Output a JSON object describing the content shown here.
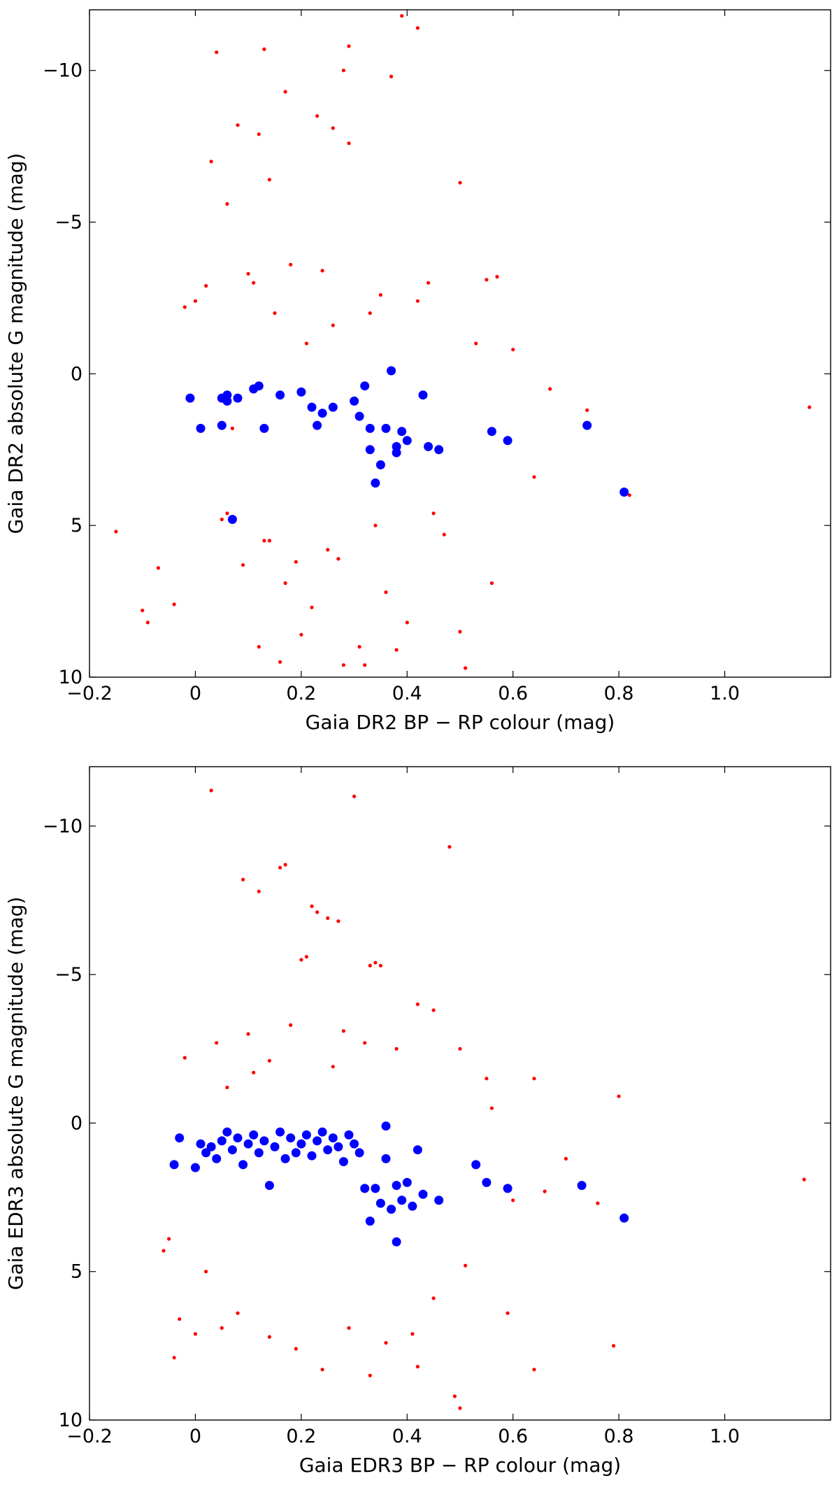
{
  "colors": {
    "field": "#ff0000",
    "highlight": "#0000ff",
    "axis": "#000000",
    "background": "#ffffff"
  },
  "chart_data": [
    {
      "type": "scatter",
      "xlabel": "Gaia DR2 BP − RP colour (mag)",
      "ylabel": "Gaia DR2 absolute G magnitude (mag)",
      "xlim": [
        -0.2,
        1.2
      ],
      "ylim": [
        10,
        -12
      ],
      "y_inverted": true,
      "xticks": [
        -0.2,
        0,
        0.2,
        0.4,
        0.6,
        0.8,
        1.0
      ],
      "xtick_labels": [
        "−0.2",
        "0",
        "0.2",
        "0.4",
        "0.6",
        "0.8",
        "1.0"
      ],
      "yticks": [
        -10,
        -5,
        0,
        5,
        10
      ],
      "ytick_labels": [
        "−10",
        "−5",
        "0",
        "5",
        "10"
      ],
      "grid": false,
      "series": [
        {
          "color": "#ff0000",
          "marker_size": "small",
          "x": [
            0.39,
            0.42,
            0.29,
            0.04,
            0.13,
            0.28,
            0.37,
            0.5,
            0.26,
            0.17,
            0.08,
            0.23,
            0.12,
            0.29,
            0.03,
            0.06,
            0.14,
            0.44,
            0.57,
            0.55,
            0.67,
            0.74,
            1.16,
            0.82,
            0.64,
            0.56,
            0.06,
            -0.07,
            -0.04,
            -0.09,
            -0.1,
            0.51,
            0.5,
            0.32,
            0.28,
            0.16,
            0.12,
            0.31,
            0.2,
            0.38,
            0.4,
            0.05,
            0.14,
            0.47,
            0.45,
            0.07,
            0.21,
            0.26,
            0.33,
            -0.02,
            0.0,
            0.02,
            0.1,
            0.18,
            0.24,
            0.35,
            0.42,
            0.53,
            0.6,
            -0.15,
            0.25,
            0.19,
            0.17,
            0.22,
            0.09,
            0.13,
            0.27,
            0.34,
            0.36,
            0.11,
            0.15
          ],
          "y": [
            -11.8,
            -11.4,
            -10.8,
            -10.6,
            -10.7,
            -10.0,
            -9.8,
            -6.3,
            -8.1,
            -9.3,
            -8.2,
            -8.5,
            -7.9,
            -7.6,
            -7.0,
            -5.6,
            -6.4,
            -3.0,
            -3.2,
            -3.1,
            0.5,
            1.2,
            1.1,
            4.0,
            3.4,
            6.9,
            4.6,
            6.4,
            7.6,
            8.2,
            7.8,
            9.7,
            8.5,
            9.6,
            9.6,
            9.5,
            9.0,
            9.0,
            8.6,
            9.1,
            8.2,
            4.8,
            5.5,
            5.3,
            4.6,
            1.8,
            -1.0,
            -1.6,
            -2.0,
            -2.2,
            -2.4,
            -2.9,
            -3.3,
            -3.6,
            -3.4,
            -2.6,
            -2.4,
            -1.0,
            -0.8,
            5.2,
            5.8,
            6.2,
            6.9,
            7.7,
            6.3,
            5.5,
            6.1,
            5.0,
            7.2,
            -3.0,
            -2.0
          ]
        },
        {
          "color": "#0000ff",
          "marker_size": "large",
          "x": [
            -0.01,
            0.01,
            0.05,
            0.06,
            0.06,
            0.05,
            0.07,
            0.08,
            0.11,
            0.12,
            0.13,
            0.16,
            0.2,
            0.22,
            0.23,
            0.24,
            0.26,
            0.3,
            0.31,
            0.32,
            0.33,
            0.33,
            0.34,
            0.35,
            0.36,
            0.37,
            0.38,
            0.38,
            0.39,
            0.4,
            0.43,
            0.44,
            0.46,
            0.56,
            0.59,
            0.74,
            0.81
          ],
          "y": [
            0.8,
            1.8,
            0.8,
            0.9,
            0.7,
            1.7,
            4.8,
            0.8,
            0.5,
            0.4,
            1.8,
            0.7,
            0.6,
            1.1,
            1.7,
            1.3,
            1.1,
            0.9,
            1.4,
            0.4,
            1.8,
            2.5,
            3.6,
            3.0,
            1.8,
            -0.1,
            2.4,
            2.6,
            1.9,
            2.2,
            0.7,
            2.4,
            2.5,
            1.9,
            2.2,
            1.7,
            3.9
          ]
        }
      ]
    },
    {
      "type": "scatter",
      "xlabel": "Gaia EDR3 BP − RP colour (mag)",
      "ylabel": "Gaia EDR3 absolute G magnitude (mag)",
      "xlim": [
        -0.2,
        1.2
      ],
      "ylim": [
        10,
        -12
      ],
      "y_inverted": true,
      "xticks": [
        -0.2,
        0,
        0.2,
        0.4,
        0.6,
        0.8,
        1.0
      ],
      "xtick_labels": [
        "−0.2",
        "0",
        "0.2",
        "0.4",
        "0.6",
        "0.8",
        "1.0"
      ],
      "yticks": [
        -10,
        -5,
        0,
        5,
        10
      ],
      "ytick_labels": [
        "−10",
        "−5",
        "0",
        "5",
        "10"
      ],
      "grid": false,
      "series": [
        {
          "color": "#ff0000",
          "marker_size": "small",
          "x": [
            0.03,
            0.3,
            0.48,
            0.16,
            0.17,
            0.09,
            0.12,
            0.22,
            0.23,
            0.25,
            0.27,
            0.2,
            0.21,
            0.33,
            0.34,
            0.35,
            0.42,
            0.45,
            0.5,
            0.55,
            0.64,
            0.8,
            1.15,
            0.79,
            0.66,
            0.64,
            0.59,
            0.49,
            0.5,
            0.33,
            0.42,
            0.05,
            -0.05,
            -0.04,
            -0.03,
            -0.06,
            0.0,
            0.02,
            0.08,
            0.14,
            0.19,
            0.24,
            0.29,
            0.36,
            0.41,
            0.45,
            0.51,
            0.6,
            0.7,
            0.76,
            0.56,
            0.26,
            0.14,
            0.11,
            0.06,
            0.38,
            0.32,
            0.28,
            0.18,
            0.1,
            0.04,
            -0.02
          ],
          "y": [
            -11.2,
            -11.0,
            -9.3,
            -8.6,
            -8.7,
            -8.2,
            -7.8,
            -7.3,
            -7.1,
            -6.9,
            -6.8,
            -5.5,
            -5.6,
            -5.3,
            -5.4,
            -5.3,
            -4.0,
            -3.8,
            -2.5,
            -1.5,
            -1.5,
            -0.9,
            1.9,
            7.5,
            2.3,
            8.3,
            6.4,
            9.2,
            9.6,
            8.5,
            8.2,
            6.9,
            3.9,
            7.9,
            6.6,
            4.3,
            7.1,
            5.0,
            6.4,
            7.2,
            7.6,
            8.3,
            6.9,
            7.4,
            7.1,
            5.9,
            4.8,
            2.6,
            1.2,
            2.7,
            -0.5,
            -1.9,
            -2.1,
            -1.7,
            -1.2,
            -2.5,
            -2.7,
            -3.1,
            -3.3,
            -3.0,
            -2.7,
            -2.2
          ]
        },
        {
          "color": "#0000ff",
          "marker_size": "large",
          "x": [
            -0.04,
            -0.03,
            0.0,
            0.01,
            0.02,
            0.03,
            0.04,
            0.05,
            0.06,
            0.07,
            0.08,
            0.09,
            0.1,
            0.11,
            0.12,
            0.13,
            0.14,
            0.15,
            0.16,
            0.17,
            0.18,
            0.19,
            0.2,
            0.21,
            0.22,
            0.23,
            0.24,
            0.25,
            0.26,
            0.27,
            0.28,
            0.29,
            0.3,
            0.31,
            0.32,
            0.33,
            0.34,
            0.35,
            0.36,
            0.36,
            0.37,
            0.38,
            0.38,
            0.39,
            0.4,
            0.41,
            0.42,
            0.43,
            0.46,
            0.53,
            0.55,
            0.59,
            0.73,
            0.81
          ],
          "y": [
            1.4,
            0.5,
            1.5,
            0.7,
            1.0,
            0.8,
            1.2,
            0.6,
            0.3,
            0.9,
            0.5,
            1.4,
            0.7,
            0.4,
            1.0,
            0.6,
            2.1,
            0.8,
            0.3,
            1.2,
            0.5,
            1.0,
            0.7,
            0.4,
            1.1,
            0.6,
            0.3,
            0.9,
            0.5,
            0.8,
            1.3,
            0.4,
            0.7,
            1.0,
            2.2,
            3.3,
            2.2,
            2.7,
            0.1,
            1.2,
            2.9,
            2.1,
            4.0,
            2.6,
            2.0,
            2.8,
            0.9,
            2.4,
            2.6,
            1.4,
            2.0,
            2.2,
            2.1,
            3.2
          ]
        }
      ]
    }
  ]
}
